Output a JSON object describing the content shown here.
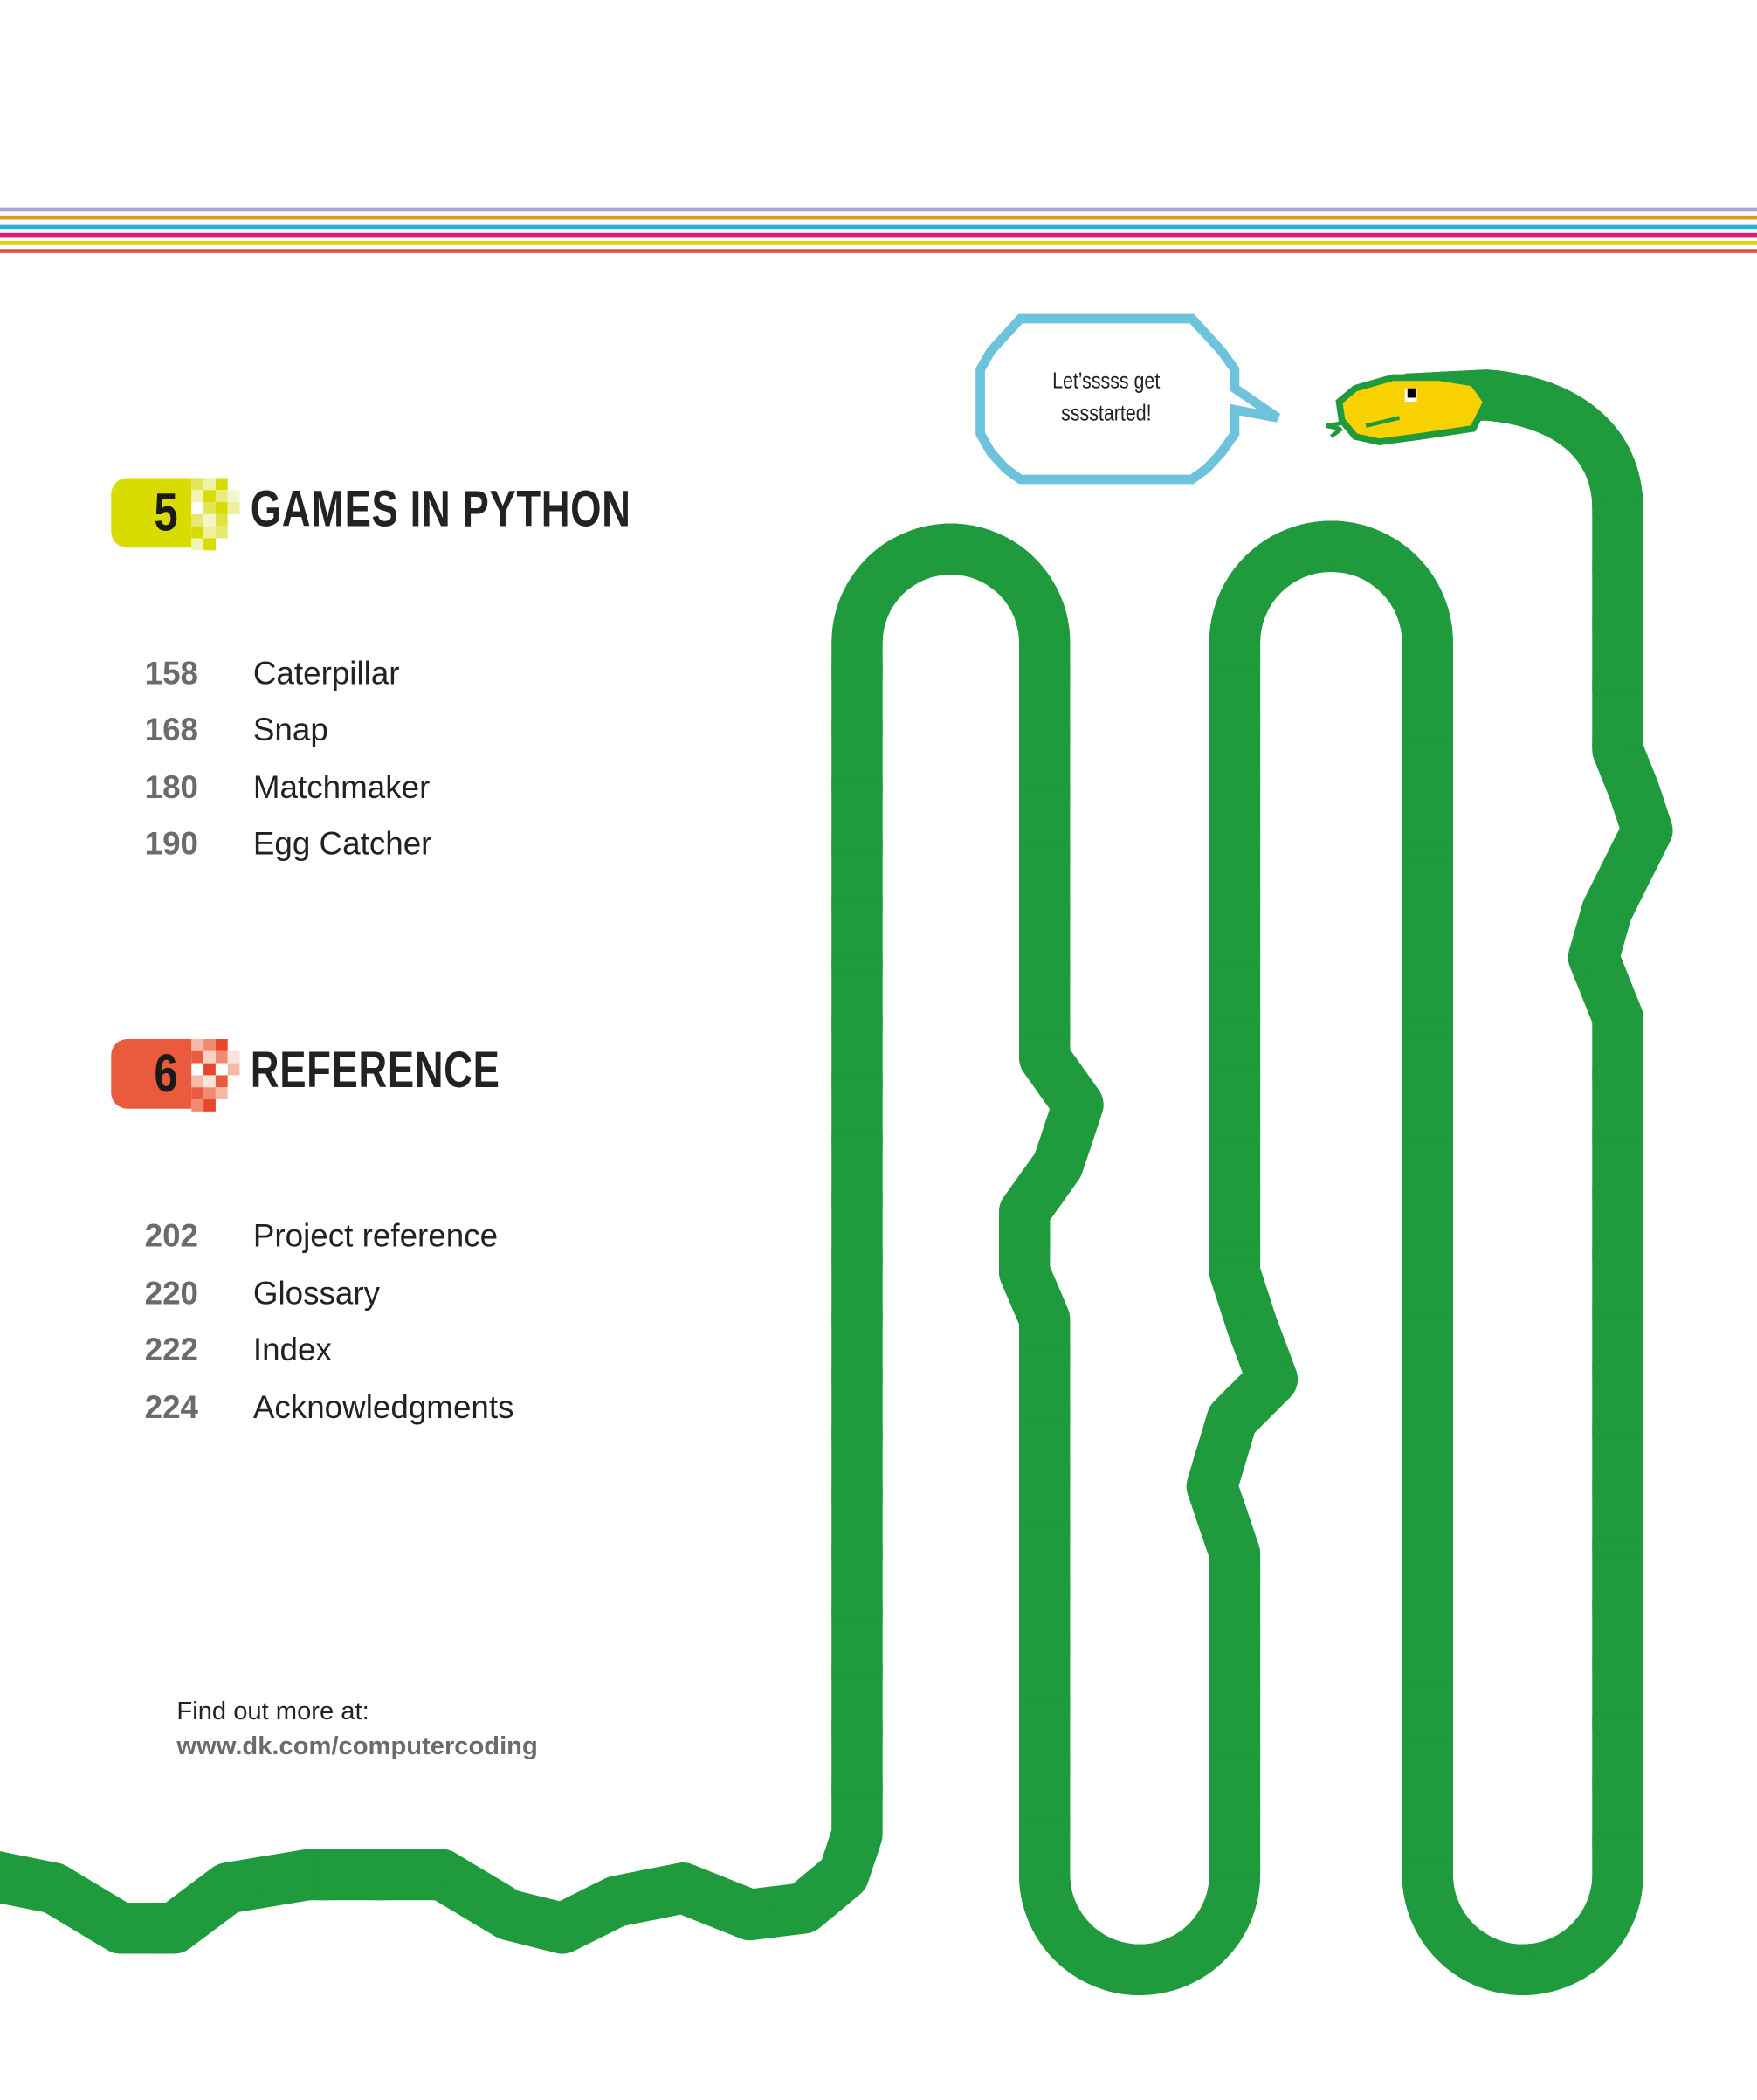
{
  "stripes": [
    "#aba1d2",
    "#df961e",
    "#2caed8",
    "#df1a7c",
    "#d9d600",
    "#e0503b"
  ],
  "speech_bubble": {
    "line1": "Let’sssss get",
    "line2": "sssstarted!",
    "color": "#6cc3db"
  },
  "snake": {
    "outline_color": "#1f9a3c",
    "body_color": "#f8d200",
    "scale_color": "#7db845"
  },
  "chapters": [
    {
      "number": "5",
      "title": "GAMES IN PYTHON",
      "color": "#d8dc00",
      "entries": [
        {
          "page": "158",
          "label": "Caterpillar"
        },
        {
          "page": "168",
          "label": "Snap"
        },
        {
          "page": "180",
          "label": "Matchmaker"
        },
        {
          "page": "190",
          "label": "Egg Catcher"
        }
      ]
    },
    {
      "number": "6",
      "title": "REFERENCE",
      "color": "#ea5a3c",
      "entries": [
        {
          "page": "202",
          "label": "Project reference"
        },
        {
          "page": "220",
          "label": "Glossary"
        },
        {
          "page": "222",
          "label": "Index"
        },
        {
          "page": "224",
          "label": "Acknowledgments"
        }
      ]
    }
  ],
  "footer": {
    "line1": "Find out more at:",
    "link": "www.dk.com/computercoding"
  }
}
